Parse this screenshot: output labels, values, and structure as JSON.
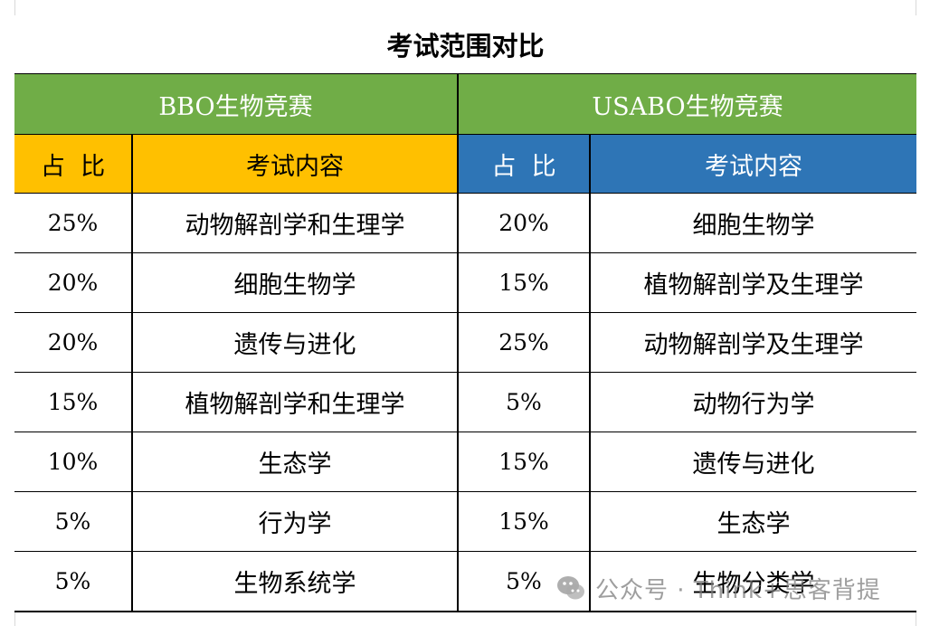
{
  "title": "考试范围对比",
  "groups": {
    "left": "BBO生物竞赛",
    "right": "USABO生物竞赛"
  },
  "headers": {
    "left_ratio": "占  比",
    "left_content": "考试内容",
    "right_ratio": "占  比",
    "right_content": "考试内容"
  },
  "rows": [
    {
      "bbo_ratio": "25%",
      "bbo_content": "动物解剖学和生理学",
      "usabo_ratio": "20%",
      "usabo_content": "细胞生物学"
    },
    {
      "bbo_ratio": "20%",
      "bbo_content": "细胞生物学",
      "usabo_ratio": "15%",
      "usabo_content": "植物解剖学及生理学"
    },
    {
      "bbo_ratio": "20%",
      "bbo_content": "遗传与进化",
      "usabo_ratio": "25%",
      "usabo_content": "动物解剖学及生理学"
    },
    {
      "bbo_ratio": "15%",
      "bbo_content": "植物解剖学和生理学",
      "usabo_ratio": "5%",
      "usabo_content": "动物行为学"
    },
    {
      "bbo_ratio": "10%",
      "bbo_content": "生态学",
      "usabo_ratio": "15%",
      "usabo_content": "遗传与进化"
    },
    {
      "bbo_ratio": "5%",
      "bbo_content": "行为学",
      "usabo_ratio": "15%",
      "usabo_content": "生态学"
    },
    {
      "bbo_ratio": "5%",
      "bbo_content": "生物系统学",
      "usabo_ratio": "5%",
      "usabo_content": "生物分类学"
    }
  ],
  "colors": {
    "group_header": "#70ad47",
    "left_header": "#ffc000",
    "right_header": "#2e75b6"
  },
  "watermark": {
    "icon": "wechat-icon",
    "text": "公众号 · Think+思客背提"
  }
}
